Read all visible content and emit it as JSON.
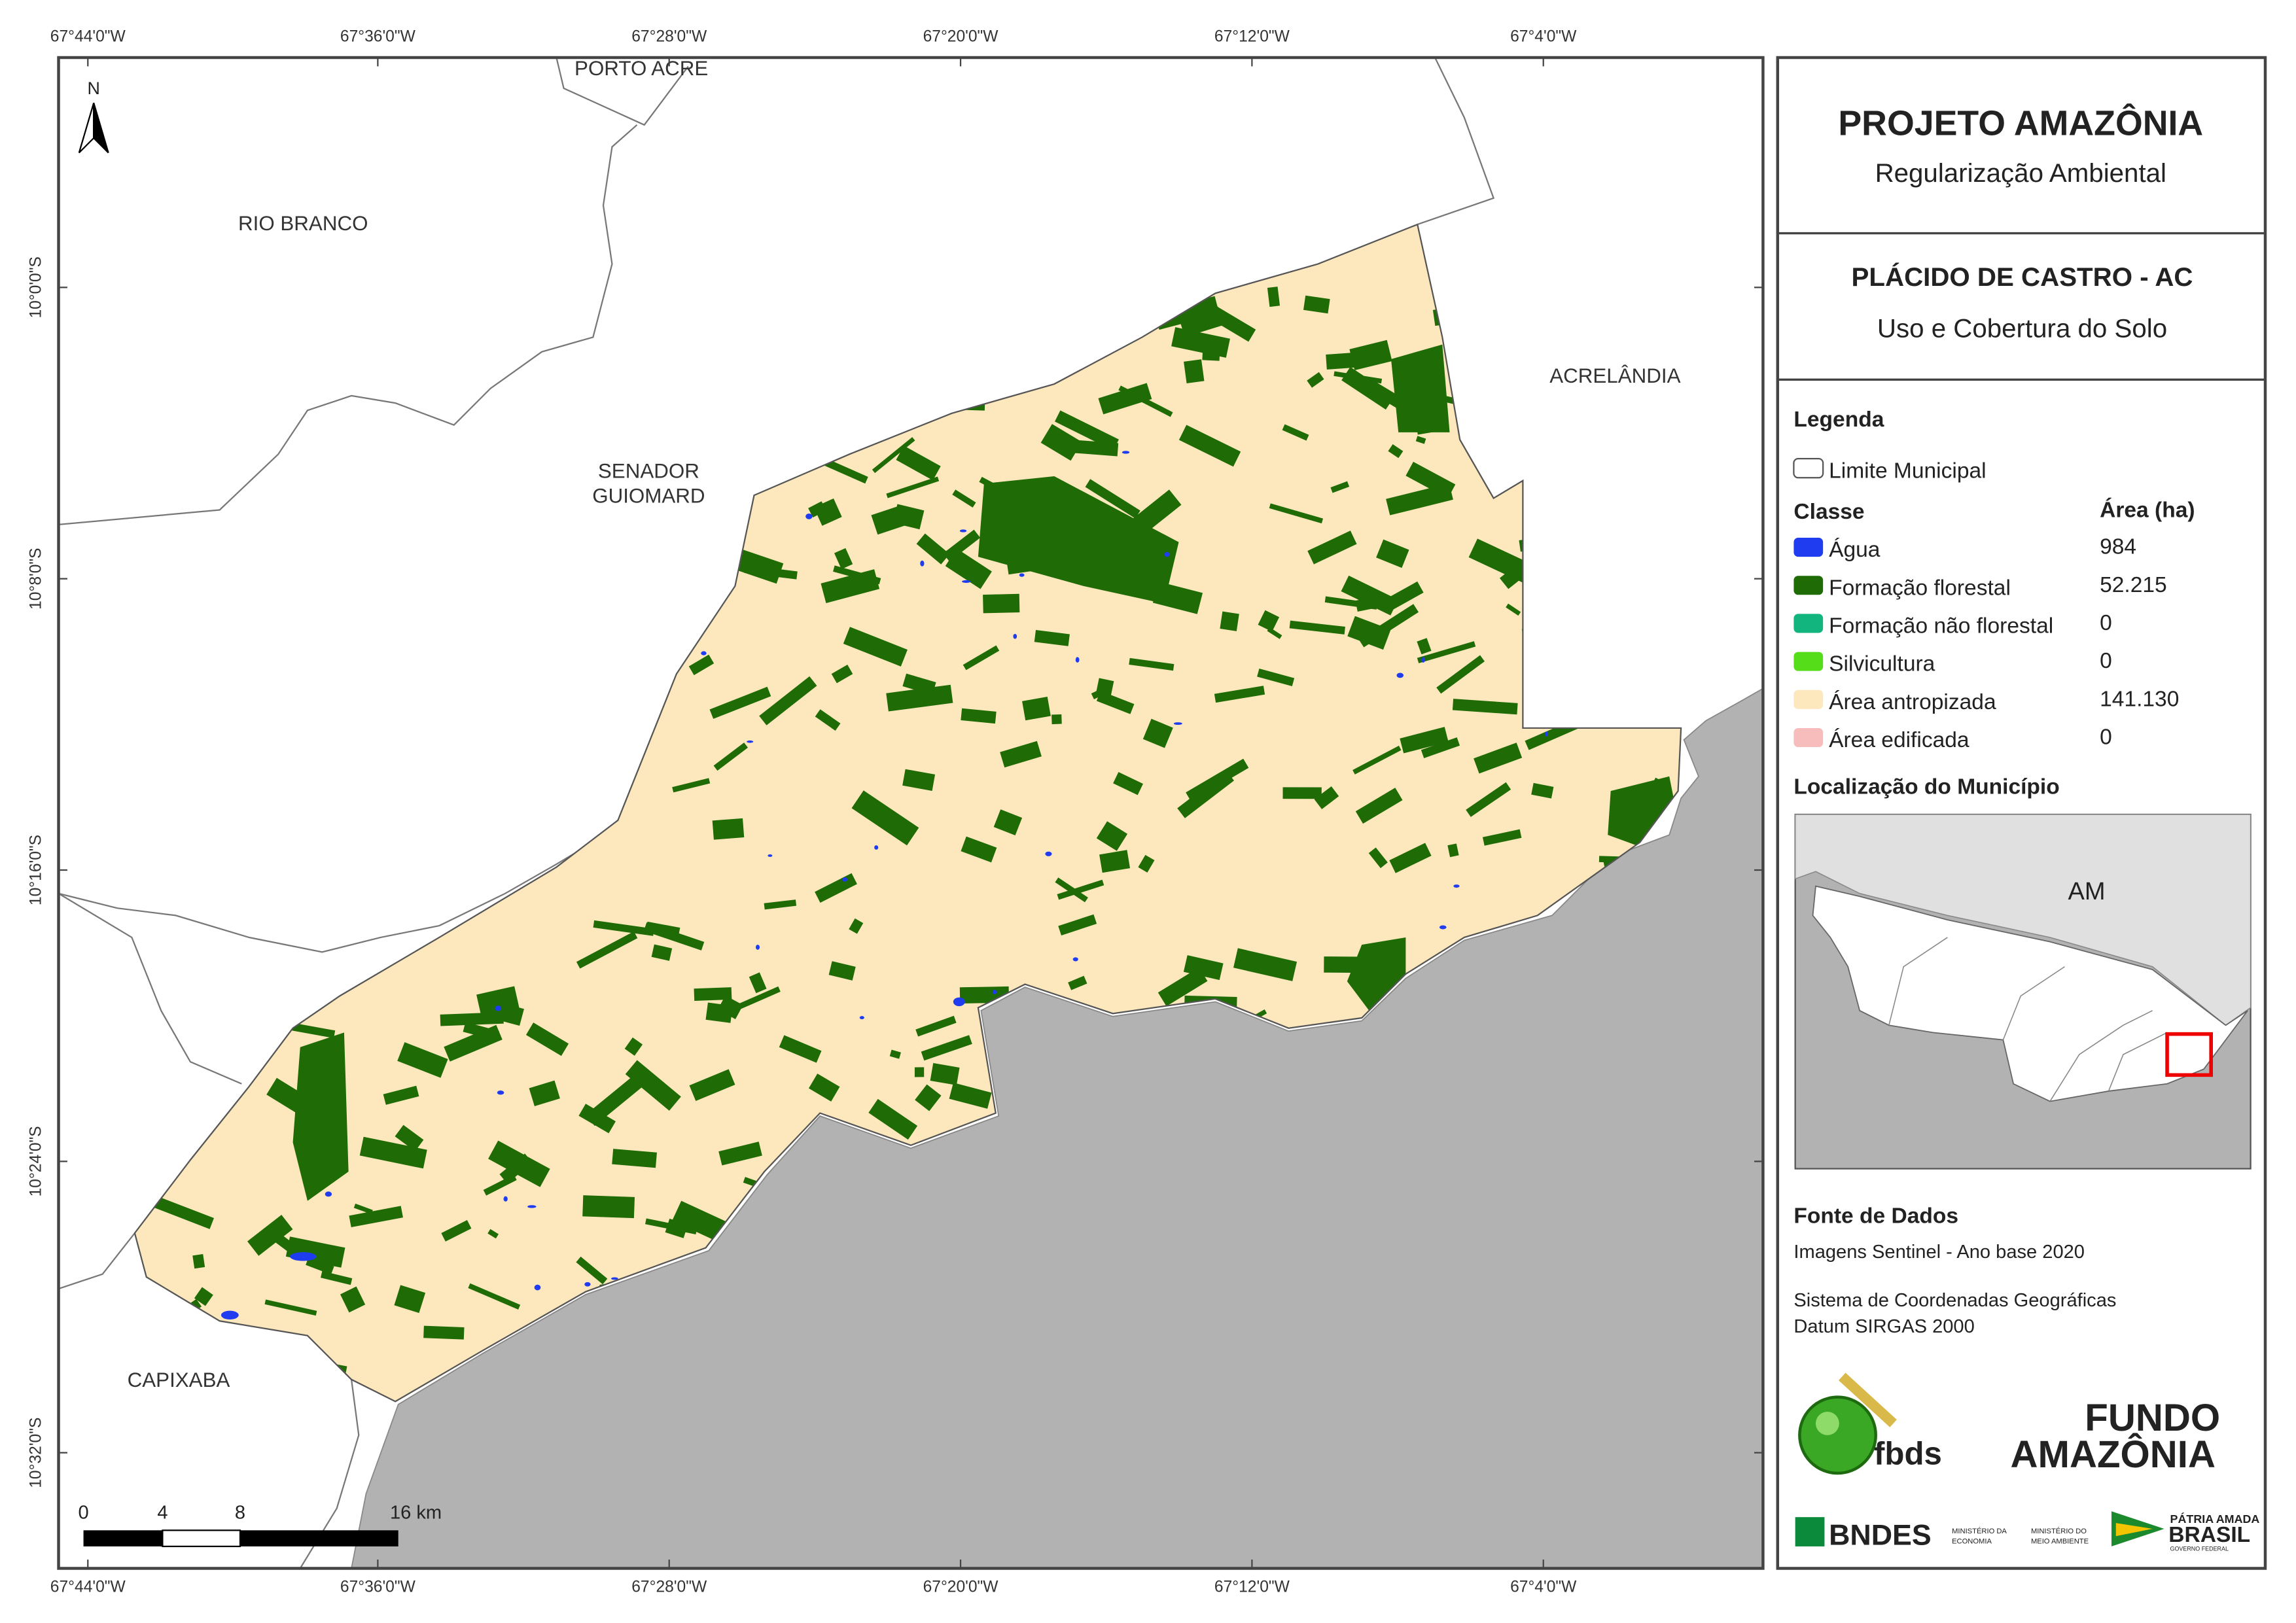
{
  "map": {
    "longitudes": [
      "67°44'0\"W",
      "67°36'0\"W",
      "67°28'0\"W",
      "67°20'0\"W",
      "67°12'0\"W",
      "67°4'0\"W"
    ],
    "latitudes": [
      "10°0'0\"S",
      "10°8'0\"S",
      "10°16'0\"S",
      "10°24'0\"S",
      "10°32'0\"S"
    ],
    "places": [
      "PORTO ACRE",
      "RIO BRANCO",
      "SENADOR",
      "GUIOMARD",
      "ACRELÂNDIA",
      "CAPIXABA"
    ],
    "north": "N",
    "scale": [
      "0",
      "4",
      "8",
      "16 km"
    ]
  },
  "panel": {
    "title": "PROJETO AMAZÔNIA",
    "subtitle": "Regularização Ambiental",
    "municipality": "PLÁCIDO DE CASTRO - AC",
    "theme": "Uso e Cobertura do Solo",
    "legend": {
      "title": "Legenda",
      "boundary": "Limite Municipal",
      "class_header": "Classe",
      "area_header": "Área (ha)",
      "classes": [
        {
          "name": "Água",
          "area": "984",
          "color": "#1f3cf0"
        },
        {
          "name": "Formação florestal",
          "area": "52.215",
          "color": "#1f6b06"
        },
        {
          "name": "Formação não florestal",
          "area": "0",
          "color": "#13b57f"
        },
        {
          "name": "Silvicultura",
          "area": "0",
          "color": "#55dd1a"
        },
        {
          "name": "Área antropizada",
          "area": "141.130",
          "color": "#fde8be"
        },
        {
          "name": "Área edificada",
          "area": "0",
          "color": "#f7bcbc"
        }
      ]
    },
    "location": {
      "title": "Localização do Município",
      "label": "AM"
    },
    "sources": {
      "title": "Fonte de Dados",
      "lines": [
        "Imagens Sentinel - Ano base 2020",
        "Sistema de Coordenadas Geográficas",
        "Datum SIRGAS 2000"
      ]
    },
    "logos": [
      "fbds",
      "FUNDO",
      "AMAZÔNIA",
      "BNDES",
      "MINISTÉRIO DA",
      "ECONOMIA",
      "MINISTÉRIO DO",
      "MEIO AMBIENTE",
      "PÁTRIA AMADA",
      "BRASIL",
      "GOVERNO FEDERAL"
    ]
  }
}
